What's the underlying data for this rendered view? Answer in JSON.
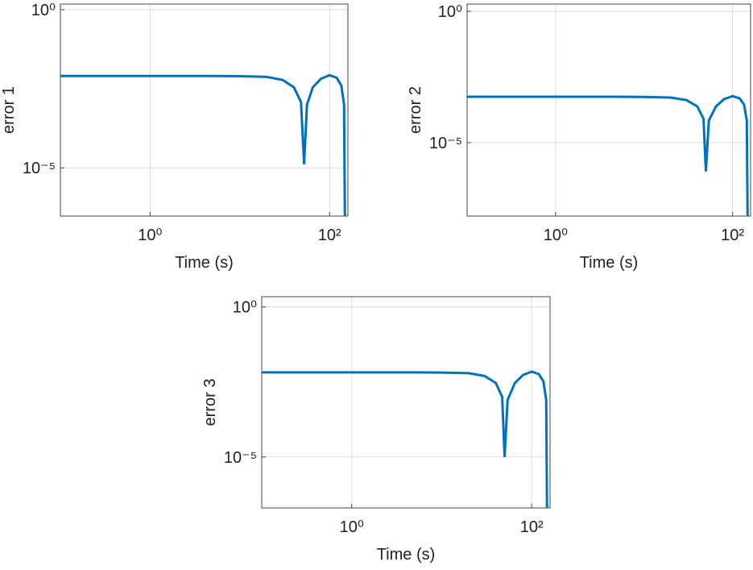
{
  "chart_data": [
    {
      "type": "line",
      "xlabel": "Time (s)",
      "ylabel": "error 1",
      "xscale": "log",
      "yscale": "log",
      "grid": true,
      "xlim": [
        0.1,
        160
      ],
      "ylim": [
        3e-07,
        1.5
      ],
      "xticks": [
        {
          "value": 1,
          "label": "10⁰"
        },
        {
          "value": 100,
          "label": "10²"
        }
      ],
      "yticks": [
        {
          "value": 1e-05,
          "label": "10⁻⁵"
        },
        {
          "value": 1,
          "label": "10⁰"
        }
      ],
      "x": [
        0.1,
        1,
        5,
        10,
        20,
        30,
        40,
        48,
        52,
        56,
        65,
        80,
        100,
        120,
        135,
        145,
        148
      ],
      "values": [
        0.008,
        0.008,
        0.008,
        0.0079,
        0.0075,
        0.006,
        0.0035,
        0.0012,
        1.3e-05,
        0.001,
        0.0035,
        0.0065,
        0.0085,
        0.007,
        0.004,
        0.001,
        3e-07
      ],
      "color": "#0072bd"
    },
    {
      "type": "line",
      "xlabel": "Time (s)",
      "ylabel": "error 2",
      "xscale": "log",
      "yscale": "log",
      "grid": true,
      "xlim": [
        0.1,
        160
      ],
      "ylim": [
        1.6e-08,
        1.9
      ],
      "xticks": [
        {
          "value": 1,
          "label": "10⁰"
        },
        {
          "value": 100,
          "label": "10²"
        }
      ],
      "yticks": [
        {
          "value": 1e-05,
          "label": "10⁻⁵"
        },
        {
          "value": 1,
          "label": "10⁰"
        }
      ],
      "x": [
        0.1,
        1,
        5,
        10,
        20,
        30,
        40,
        47,
        50,
        54,
        65,
        80,
        100,
        120,
        135,
        145,
        148
      ],
      "values": [
        0.00056,
        0.00056,
        0.00056,
        0.00055,
        0.00052,
        0.00042,
        0.00024,
        8e-05,
        8e-07,
        7e-05,
        0.00024,
        0.00045,
        0.00059,
        0.00049,
        0.00028,
        7e-05,
        1.6e-08
      ],
      "color": "#0072bd"
    },
    {
      "type": "line",
      "xlabel": "Time (s)",
      "ylabel": "error 3",
      "xscale": "log",
      "yscale": "log",
      "grid": true,
      "xlim": [
        0.1,
        160
      ],
      "ylim": [
        2e-07,
        2.2
      ],
      "xticks": [
        {
          "value": 1,
          "label": "10⁰"
        },
        {
          "value": 100,
          "label": "10²"
        }
      ],
      "yticks": [
        {
          "value": 1e-05,
          "label": "10⁻⁵"
        },
        {
          "value": 1,
          "label": "10⁰"
        }
      ],
      "x": [
        0.1,
        1,
        5,
        10,
        20,
        30,
        40,
        47,
        50,
        54,
        65,
        80,
        100,
        120,
        135,
        145,
        148
      ],
      "values": [
        0.0066,
        0.0066,
        0.0066,
        0.0065,
        0.0062,
        0.005,
        0.0029,
        0.001,
        1e-05,
        0.0008,
        0.0029,
        0.0054,
        0.007,
        0.0058,
        0.0033,
        0.0008,
        2e-07
      ],
      "color": "#0072bd"
    }
  ]
}
